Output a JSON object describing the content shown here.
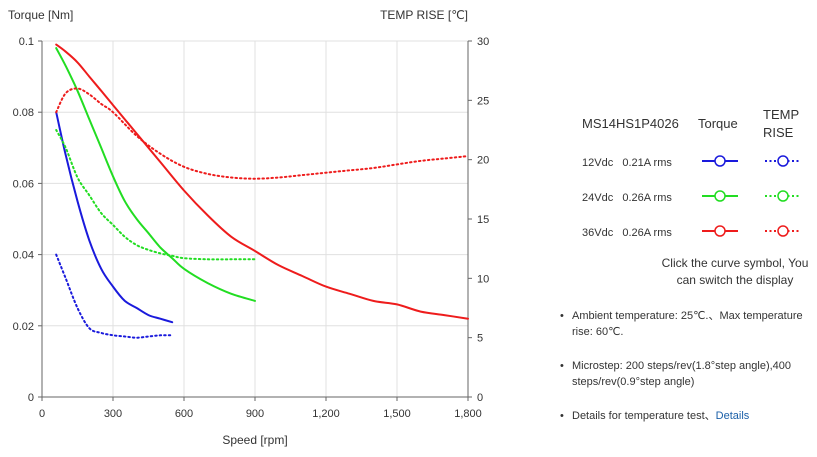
{
  "chart_data": {
    "type": "line",
    "xlabel": "Speed [rpm]",
    "ylabel_left": "Torque  [Nm]",
    "ylabel_right": "TEMP RISE [℃]",
    "xlim": [
      0,
      1800
    ],
    "ylim_left": [
      0,
      0.1
    ],
    "ylim_right": [
      0,
      30
    ],
    "x_ticks": [
      0,
      300,
      600,
      900,
      1200,
      1500,
      1800
    ],
    "x_tick_labels": [
      "0",
      "300",
      "600",
      "900",
      "1,200",
      "1,500",
      "1,800"
    ],
    "y_left_ticks": [
      0,
      0.02,
      0.04,
      0.06,
      0.08,
      0.1
    ],
    "y_left_tick_labels": [
      "0",
      "0.02",
      "0.04",
      "0.06",
      "0.08",
      "0.1"
    ],
    "y_right_ticks": [
      0,
      5,
      10,
      15,
      20,
      25,
      30
    ],
    "y_right_tick_labels": [
      "0",
      "5",
      "10",
      "15",
      "20",
      "25",
      "30"
    ],
    "grid": true,
    "series": [
      {
        "name": "12Vdc Torque",
        "axis": "left",
        "color": "#1a1adc",
        "style": "solid",
        "x": [
          60,
          100,
          150,
          200,
          250,
          300,
          350,
          400,
          450,
          500,
          550
        ],
        "y": [
          0.08,
          0.068,
          0.055,
          0.044,
          0.036,
          0.031,
          0.027,
          0.025,
          0.023,
          0.022,
          0.021
        ]
      },
      {
        "name": "12Vdc Temp rise",
        "axis": "right",
        "color": "#1a1adc",
        "style": "dotted",
        "x": [
          60,
          100,
          150,
          200,
          250,
          300,
          350,
          400,
          450,
          500,
          550
        ],
        "y": [
          12,
          10,
          7.5,
          5.8,
          5.4,
          5.2,
          5.1,
          5.0,
          5.1,
          5.2,
          5.2
        ]
      },
      {
        "name": "24Vdc Torque",
        "axis": "left",
        "color": "#22dd22",
        "style": "solid",
        "x": [
          60,
          100,
          150,
          200,
          250,
          300,
          350,
          400,
          450,
          500,
          550,
          600,
          700,
          800,
          900
        ],
        "y": [
          0.098,
          0.093,
          0.086,
          0.078,
          0.07,
          0.062,
          0.055,
          0.05,
          0.046,
          0.042,
          0.039,
          0.036,
          0.032,
          0.029,
          0.027
        ]
      },
      {
        "name": "24Vdc Temp rise",
        "axis": "right",
        "color": "#22dd22",
        "style": "dotted",
        "x": [
          60,
          100,
          150,
          200,
          250,
          300,
          350,
          400,
          450,
          500,
          550,
          600,
          700,
          800,
          900
        ],
        "y": [
          22.5,
          21,
          18.5,
          17,
          15.5,
          14.5,
          13.5,
          12.8,
          12.4,
          12.1,
          11.9,
          11.7,
          11.6,
          11.6,
          11.6
        ]
      },
      {
        "name": "36Vdc Torque",
        "axis": "left",
        "color": "#ee1c1c",
        "style": "solid",
        "x": [
          60,
          100,
          150,
          200,
          250,
          300,
          400,
          500,
          600,
          700,
          800,
          900,
          1000,
          1100,
          1200,
          1300,
          1400,
          1500,
          1600,
          1700,
          1800
        ],
        "y": [
          0.099,
          0.097,
          0.094,
          0.09,
          0.086,
          0.082,
          0.074,
          0.066,
          0.058,
          0.051,
          0.045,
          0.041,
          0.037,
          0.034,
          0.031,
          0.029,
          0.027,
          0.026,
          0.024,
          0.023,
          0.022
        ]
      },
      {
        "name": "36Vdc Temp rise",
        "axis": "right",
        "color": "#ee1c1c",
        "style": "dotted",
        "x": [
          60,
          100,
          150,
          200,
          250,
          300,
          400,
          500,
          600,
          700,
          800,
          900,
          1000,
          1100,
          1200,
          1300,
          1400,
          1500,
          1600,
          1700,
          1800
        ],
        "y": [
          24,
          25.6,
          26,
          25.5,
          24.7,
          24,
          22,
          20.5,
          19.4,
          18.8,
          18.5,
          18.4,
          18.5,
          18.7,
          18.9,
          19.1,
          19.3,
          19.6,
          19.9,
          20.1,
          20.3
        ]
      }
    ]
  },
  "legend": {
    "model": "MS14HS1P4026",
    "col_torque": "Torque",
    "col_temp": "TEMP\nRISE",
    "rows": [
      {
        "label": "12Vdc   0.21A rms",
        "color": "#1a1adc"
      },
      {
        "label": "24Vdc   0.26A rms",
        "color": "#22dd22"
      },
      {
        "label": "36Vdc   0.26A rms",
        "color": "#ee1c1c"
      }
    ],
    "note": "Click the curve symbol, You can switch the display"
  },
  "notes": {
    "bullet": "•",
    "ambient": "Ambient temperature: 25℃.、Max temperature rise: 60℃.",
    "microstep": "Microstep: 200 steps/rev(1.8°step angle),400 steps/rev(0.9°step angle)",
    "details_text": "Details for temperature test、",
    "details_link": "Details"
  }
}
